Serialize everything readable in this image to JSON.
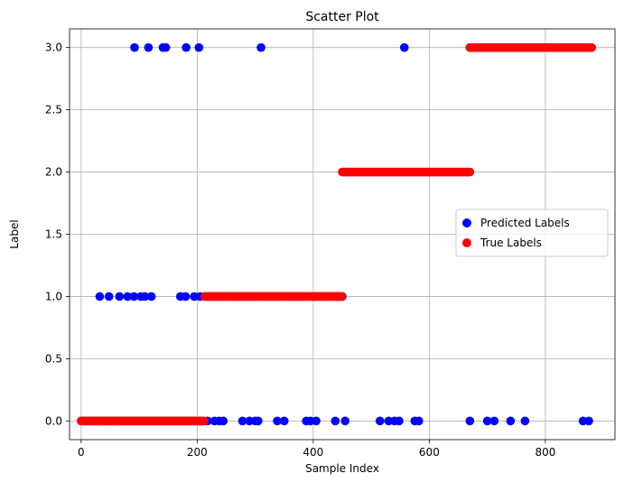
{
  "chart_data": {
    "type": "scatter",
    "title": "Scatter Plot",
    "xlabel": "Sample Index",
    "ylabel": "Label",
    "xlim": [
      -20,
      920
    ],
    "ylim": [
      -0.15,
      3.15
    ],
    "xticks": [
      0,
      200,
      400,
      600,
      800
    ],
    "yticks": [
      0.0,
      0.5,
      1.0,
      1.5,
      2.0,
      2.5,
      3.0
    ],
    "ytick_labels": [
      "0.0",
      "0.5",
      "1.0",
      "1.5",
      "2.0",
      "2.5",
      "3.0"
    ],
    "grid": true,
    "legend_position": "center-right",
    "series": [
      {
        "name": "Predicted Labels",
        "color": "#0000ff",
        "points": [
          [
            0,
            0
          ],
          [
            5,
            0
          ],
          [
            10,
            0
          ],
          [
            15,
            0
          ],
          [
            20,
            0
          ],
          [
            25,
            0
          ],
          [
            29,
            0
          ],
          [
            35,
            0
          ],
          [
            40,
            0
          ],
          [
            45,
            0
          ],
          [
            50,
            0
          ],
          [
            55,
            0
          ],
          [
            58,
            0
          ],
          [
            65,
            0
          ],
          [
            70,
            0
          ],
          [
            75,
            0
          ],
          [
            80,
            0
          ],
          [
            85,
            0
          ],
          [
            90,
            0
          ],
          [
            95,
            0
          ],
          [
            100,
            0
          ],
          [
            105,
            0
          ],
          [
            110,
            0
          ],
          [
            115,
            0
          ],
          [
            120,
            0
          ],
          [
            125,
            0
          ],
          [
            130,
            0
          ],
          [
            135,
            0
          ],
          [
            140,
            0
          ],
          [
            145,
            0
          ],
          [
            150,
            0
          ],
          [
            155,
            0
          ],
          [
            160,
            0
          ],
          [
            165,
            0
          ],
          [
            170,
            0
          ],
          [
            175,
            0
          ],
          [
            180,
            0
          ],
          [
            185,
            0
          ],
          [
            190,
            0
          ],
          [
            195,
            0
          ],
          [
            200,
            0
          ],
          [
            205,
            0
          ],
          [
            210,
            0
          ],
          [
            218,
            0
          ],
          [
            230,
            0
          ],
          [
            238,
            0
          ],
          [
            245,
            0
          ],
          [
            278,
            0
          ],
          [
            290,
            0
          ],
          [
            300,
            0
          ],
          [
            305,
            0
          ],
          [
            338,
            0
          ],
          [
            350,
            0
          ],
          [
            388,
            0
          ],
          [
            395,
            0
          ],
          [
            405,
            0
          ],
          [
            438,
            0
          ],
          [
            455,
            0
          ],
          [
            515,
            0
          ],
          [
            530,
            0
          ],
          [
            540,
            0
          ],
          [
            548,
            0
          ],
          [
            575,
            0
          ],
          [
            582,
            0
          ],
          [
            670,
            0
          ],
          [
            700,
            0
          ],
          [
            712,
            0
          ],
          [
            740,
            0
          ],
          [
            765,
            0
          ],
          [
            865,
            0
          ],
          [
            875,
            0
          ],
          [
            32,
            1
          ],
          [
            48,
            1
          ],
          [
            66,
            1
          ],
          [
            80,
            1
          ],
          [
            91,
            1
          ],
          [
            103,
            1
          ],
          [
            110,
            1
          ],
          [
            121,
            1
          ],
          [
            171,
            1
          ],
          [
            180,
            1
          ],
          [
            195,
            1
          ],
          [
            205,
            1
          ],
          [
            220,
            1
          ],
          [
            240,
            1
          ],
          [
            260,
            1
          ],
          [
            280,
            1
          ],
          [
            300,
            1
          ],
          [
            320,
            1
          ],
          [
            340,
            1
          ],
          [
            360,
            1
          ],
          [
            380,
            1
          ],
          [
            400,
            1
          ],
          [
            420,
            1
          ],
          [
            440,
            1
          ],
          [
            450,
            1
          ],
          [
            92,
            3
          ],
          [
            116,
            3
          ],
          [
            141,
            3
          ],
          [
            146,
            3
          ],
          [
            181,
            3
          ],
          [
            203,
            3
          ],
          [
            310,
            3
          ],
          [
            557,
            3
          ],
          [
            670,
            3
          ]
        ]
      },
      {
        "name": "True Labels",
        "color": "#ff0000",
        "ranges": [
          {
            "x_start": 0,
            "x_end": 213,
            "y": 0
          },
          {
            "x_start": 213,
            "x_end": 450,
            "y": 1
          },
          {
            "x_start": 450,
            "x_end": 670,
            "y": 2
          },
          {
            "x_start": 670,
            "x_end": 880,
            "y": 3
          }
        ]
      }
    ]
  }
}
